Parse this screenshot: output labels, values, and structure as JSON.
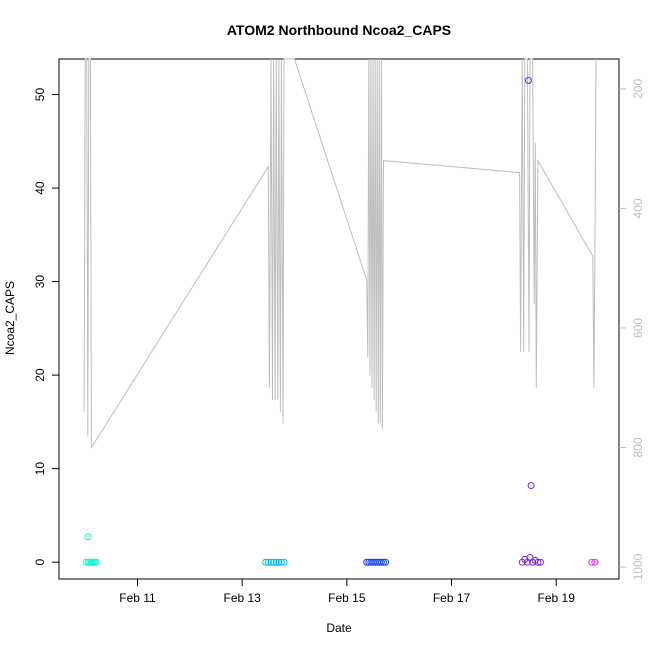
{
  "chart_data": {
    "type": "scatter",
    "title": "ATOM2 Northbound Ncoa2_CAPS",
    "xlabel": "Date",
    "ylabel": "Ncoa2_CAPS",
    "x_unit": "days (Feb 2000s date axis)",
    "xlim": [
      "Feb 9.5",
      "Feb 20.2"
    ],
    "ylim": [
      -1.8,
      53.8
    ],
    "x_ticks": [
      {
        "label": "Feb 11",
        "day": 11
      },
      {
        "label": "Feb 13",
        "day": 13
      },
      {
        "label": "Feb 15",
        "day": 15
      },
      {
        "label": "Feb 17",
        "day": 17
      },
      {
        "label": "Feb 19",
        "day": 19
      }
    ],
    "y_ticks": [
      0,
      10,
      20,
      30,
      40,
      50
    ],
    "y2_ticks": [
      200,
      400,
      600,
      800,
      1000
    ],
    "y2lim": [
      1020,
      150
    ],
    "y2_reversed": true,
    "series": [
      {
        "color": "#00ffcc",
        "points": [
          [
            10.02,
            0
          ],
          [
            10.06,
            0
          ],
          [
            10.09,
            0
          ],
          [
            10.12,
            0
          ],
          [
            10.15,
            0
          ],
          [
            10.18,
            0
          ],
          [
            10.21,
            0
          ],
          [
            10.05,
            2.7
          ]
        ]
      },
      {
        "color": "#00bbff",
        "points": [
          [
            13.45,
            0
          ],
          [
            13.5,
            0
          ],
          [
            13.55,
            0
          ],
          [
            13.6,
            0
          ],
          [
            13.65,
            0
          ],
          [
            13.7,
            0
          ],
          [
            13.75,
            0
          ],
          [
            13.8,
            0
          ]
        ]
      },
      {
        "color": "#1144ff",
        "points": [
          [
            15.38,
            0
          ],
          [
            15.42,
            0
          ],
          [
            15.46,
            0
          ],
          [
            15.5,
            0
          ],
          [
            15.54,
            0
          ],
          [
            15.58,
            0
          ],
          [
            15.62,
            0
          ],
          [
            15.66,
            0
          ],
          [
            15.7,
            0
          ],
          [
            15.74,
            0
          ]
        ]
      },
      {
        "color": "#7722ee",
        "points": [
          [
            18.35,
            0
          ],
          [
            18.4,
            0.3
          ],
          [
            18.45,
            0
          ],
          [
            18.5,
            0.5
          ],
          [
            18.55,
            0
          ],
          [
            18.6,
            0.2
          ],
          [
            18.65,
            0
          ],
          [
            18.7,
            0
          ],
          [
            18.47,
            51.5
          ],
          [
            18.52,
            8.2
          ]
        ]
      },
      {
        "color": "#ee22ee",
        "points": [
          [
            19.68,
            0
          ],
          [
            19.74,
            0
          ]
        ]
      }
    ],
    "secondary_line": {
      "color": "#bebebe",
      "points": [
        [
          9.98,
          740
        ],
        [
          10.0,
          150
        ],
        [
          10.03,
          150
        ],
        [
          10.05,
          780
        ],
        [
          10.07,
          150
        ],
        [
          10.1,
          150
        ],
        [
          10.12,
          800
        ],
        [
          13.5,
          330
        ],
        [
          13.52,
          700
        ],
        [
          13.55,
          150
        ],
        [
          13.58,
          720
        ],
        [
          13.6,
          150
        ],
        [
          13.63,
          720
        ],
        [
          13.65,
          150
        ],
        [
          13.68,
          720
        ],
        [
          13.7,
          150
        ],
        [
          13.73,
          740
        ],
        [
          13.75,
          150
        ],
        [
          13.78,
          760
        ],
        [
          13.8,
          150
        ],
        [
          14.0,
          150
        ],
        [
          15.38,
          520
        ],
        [
          15.4,
          650
        ],
        [
          15.42,
          150
        ],
        [
          15.44,
          680
        ],
        [
          15.46,
          150
        ],
        [
          15.48,
          700
        ],
        [
          15.5,
          150
        ],
        [
          15.52,
          720
        ],
        [
          15.54,
          150
        ],
        [
          15.56,
          740
        ],
        [
          15.58,
          150
        ],
        [
          15.6,
          760
        ],
        [
          15.62,
          150
        ],
        [
          15.64,
          760
        ],
        [
          15.66,
          150
        ],
        [
          15.68,
          770
        ],
        [
          15.7,
          320
        ],
        [
          18.3,
          340
        ],
        [
          18.32,
          640
        ],
        [
          18.35,
          150
        ],
        [
          18.38,
          640
        ],
        [
          18.4,
          150
        ],
        [
          18.45,
          150
        ],
        [
          18.48,
          640
        ],
        [
          18.5,
          150
        ],
        [
          18.55,
          150
        ],
        [
          18.58,
          560
        ],
        [
          18.6,
          290
        ],
        [
          18.62,
          700
        ],
        [
          18.65,
          320
        ],
        [
          19.7,
          480
        ],
        [
          19.72,
          700
        ],
        [
          19.74,
          480
        ],
        [
          19.76,
          150
        ]
      ]
    },
    "grid": false,
    "legend": "none"
  }
}
